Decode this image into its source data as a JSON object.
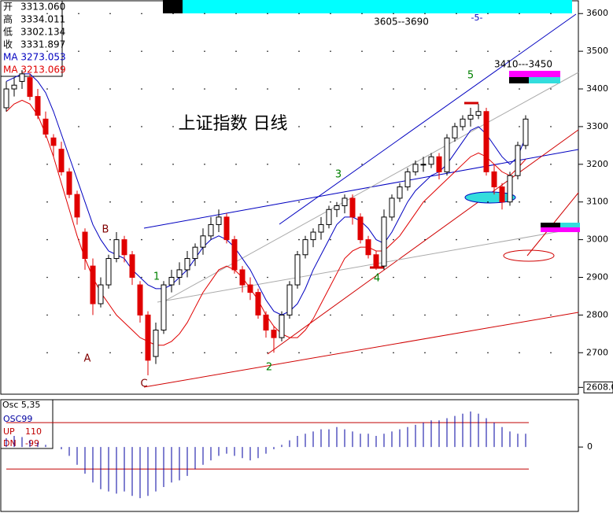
{
  "chart_data": [
    {
      "type": "candlestick",
      "title": "上证指数 日线",
      "info": [
        {
          "label": "开",
          "value": "3313.060"
        },
        {
          "label": "高",
          "value": "3334.011"
        },
        {
          "label": "低",
          "value": "3302.134"
        },
        {
          "label": "收",
          "value": "3331.897"
        }
      ],
      "ohlc": [
        [
          3350,
          3420,
          3340,
          3400
        ],
        [
          3400,
          3430,
          3380,
          3410
        ],
        [
          3420,
          3450,
          3400,
          3440
        ],
        [
          3430,
          3440,
          3370,
          3380
        ],
        [
          3380,
          3400,
          3320,
          3330
        ],
        [
          3320,
          3340,
          3270,
          3280
        ],
        [
          3270,
          3280,
          3220,
          3250
        ],
        [
          3240,
          3260,
          3170,
          3180
        ],
        [
          3180,
          3190,
          3110,
          3120
        ],
        [
          3120,
          3130,
          3040,
          3060
        ],
        [
          3020,
          3030,
          2920,
          2950
        ],
        [
          2930,
          2950,
          2800,
          2830
        ],
        [
          2830,
          2900,
          2820,
          2880
        ],
        [
          2880,
          2960,
          2870,
          2950
        ],
        [
          2950,
          3020,
          2940,
          3000
        ],
        [
          3000,
          3010,
          2940,
          2960
        ],
        [
          2960,
          2970,
          2880,
          2900
        ],
        [
          2880,
          2890,
          2780,
          2800
        ],
        [
          2800,
          2810,
          2640,
          2680
        ],
        [
          2690,
          2780,
          2670,
          2760
        ],
        [
          2760,
          2890,
          2750,
          2880
        ],
        [
          2880,
          2920,
          2860,
          2900
        ],
        [
          2900,
          2940,
          2880,
          2920
        ],
        [
          2920,
          2970,
          2900,
          2950
        ],
        [
          2950,
          2990,
          2930,
          2980
        ],
        [
          2980,
          3030,
          2960,
          3010
        ],
        [
          3010,
          3060,
          3000,
          3040
        ],
        [
          3040,
          3080,
          3020,
          3060
        ],
        [
          3060,
          3070,
          2990,
          3000
        ],
        [
          3000,
          3010,
          2910,
          2920
        ],
        [
          2920,
          2930,
          2860,
          2880
        ],
        [
          2880,
          2900,
          2840,
          2860
        ],
        [
          2860,
          2870,
          2790,
          2800
        ],
        [
          2800,
          2810,
          2740,
          2760
        ],
        [
          2760,
          2770,
          2700,
          2740
        ],
        [
          2740,
          2810,
          2730,
          2800
        ],
        [
          2800,
          2890,
          2790,
          2880
        ],
        [
          2880,
          2970,
          2870,
          2960
        ],
        [
          2960,
          3010,
          2950,
          3000
        ],
        [
          3000,
          3030,
          2980,
          3020
        ],
        [
          3020,
          3060,
          3000,
          3040
        ],
        [
          3040,
          3090,
          3030,
          3080
        ],
        [
          3080,
          3100,
          3060,
          3090
        ],
        [
          3090,
          3120,
          3070,
          3110
        ],
        [
          3110,
          3120,
          3040,
          3060
        ],
        [
          3060,
          3070,
          2990,
          3000
        ],
        [
          3000,
          3010,
          2950,
          2960
        ],
        [
          2960,
          2970,
          2920,
          2930
        ],
        [
          2930,
          3080,
          2920,
          3060
        ],
        [
          3060,
          3120,
          3050,
          3110
        ],
        [
          3110,
          3150,
          3100,
          3140
        ],
        [
          3140,
          3190,
          3130,
          3180
        ],
        [
          3180,
          3210,
          3170,
          3200
        ],
        [
          3200,
          3220,
          3180,
          3200
        ],
        [
          3200,
          3230,
          3190,
          3220
        ],
        [
          3220,
          3230,
          3160,
          3180
        ],
        [
          3180,
          3280,
          3170,
          3270
        ],
        [
          3270,
          3310,
          3260,
          3300
        ],
        [
          3300,
          3330,
          3290,
          3320
        ],
        [
          3320,
          3350,
          3300,
          3330
        ],
        [
          3330,
          3360,
          3320,
          3340
        ],
        [
          3340,
          3350,
          3170,
          3180
        ],
        [
          3180,
          3200,
          3120,
          3140
        ],
        [
          3140,
          3150,
          3080,
          3100
        ],
        [
          3100,
          3180,
          3090,
          3170
        ],
        [
          3170,
          3260,
          3160,
          3250
        ],
        [
          3250,
          3330,
          3240,
          3320
        ]
      ],
      "up_color": "#000000",
      "down_color": "#e00000",
      "series": [
        {
          "name": "MA 3273.053",
          "color": "#0000c0",
          "values": [
            3420,
            3430,
            3440,
            3440,
            3420,
            3390,
            3340,
            3280,
            3220,
            3160,
            3100,
            3040,
            3000,
            2970,
            2960,
            2950,
            2920,
            2900,
            2880,
            2870,
            2870,
            2880,
            2900,
            2920,
            2950,
            2980,
            3000,
            3010,
            3000,
            2980,
            2950,
            2920,
            2880,
            2840,
            2810,
            2800,
            2810,
            2830,
            2870,
            2920,
            2960,
            3000,
            3040,
            3060,
            3060,
            3050,
            3030,
            3000,
            2990,
            3020,
            3060,
            3100,
            3130,
            3150,
            3170,
            3180,
            3200,
            3230,
            3260,
            3290,
            3300,
            3280,
            3250,
            3220,
            3200,
            3220,
            3273
          ]
        },
        {
          "name": "MA 3213.069",
          "color": "#e00000",
          "values": [
            3340,
            3360,
            3370,
            3360,
            3330,
            3280,
            3220,
            3150,
            3080,
            3010,
            2950,
            2900,
            2860,
            2830,
            2800,
            2780,
            2760,
            2740,
            2730,
            2720,
            2720,
            2730,
            2750,
            2780,
            2820,
            2860,
            2890,
            2920,
            2930,
            2920,
            2900,
            2870,
            2840,
            2800,
            2770,
            2750,
            2740,
            2740,
            2760,
            2790,
            2830,
            2870,
            2910,
            2950,
            2970,
            2980,
            2980,
            2970,
            2970,
            2990,
            3010,
            3040,
            3070,
            3100,
            3120,
            3140,
            3160,
            3180,
            3200,
            3220,
            3230,
            3220,
            3200,
            3180,
            3170,
            3190,
            3213
          ]
        }
      ],
      "ylim": [
        2592,
        3636
      ],
      "yticks": [
        2700,
        2800,
        2900,
        3000,
        3100,
        3200,
        3300,
        3400,
        3500,
        3600,
        {
          "value": 2608,
          "label": "2608.0"
        }
      ],
      "grid": true,
      "annotations": [
        "3605--3690",
        "-5-",
        "5",
        "3410---3450",
        "3",
        "1",
        "2",
        "4",
        "A",
        "B",
        "C"
      ]
    },
    {
      "type": "bar",
      "title": "Osc 5,35",
      "series": [
        {
          "name": "OSC99",
          "color": "#0000a0",
          "values": [
            40,
            50,
            45,
            30,
            20,
            10,
            0,
            -10,
            -40,
            -80,
            -120,
            -160,
            -190,
            -200,
            -210,
            -200,
            -220,
            -230,
            -220,
            -200,
            -180,
            -160,
            -150,
            -130,
            -100,
            -80,
            -60,
            -40,
            -30,
            -40,
            -50,
            -60,
            -50,
            -30,
            -10,
            10,
            30,
            50,
            60,
            70,
            80,
            80,
            90,
            80,
            70,
            60,
            60,
            50,
            60,
            70,
            80,
            90,
            100,
            110,
            120,
            120,
            130,
            140,
            150,
            160,
            150,
            130,
            110,
            90,
            70,
            60,
            60
          ]
        }
      ],
      "levels": [
        {
          "label": "UP",
          "value": 110,
          "color": "#c00000"
        },
        {
          "label": "DN",
          "value": -99,
          "color": "#c00000"
        }
      ],
      "ylim": [
        -290,
        206
      ],
      "yticks": [
        0
      ]
    }
  ]
}
